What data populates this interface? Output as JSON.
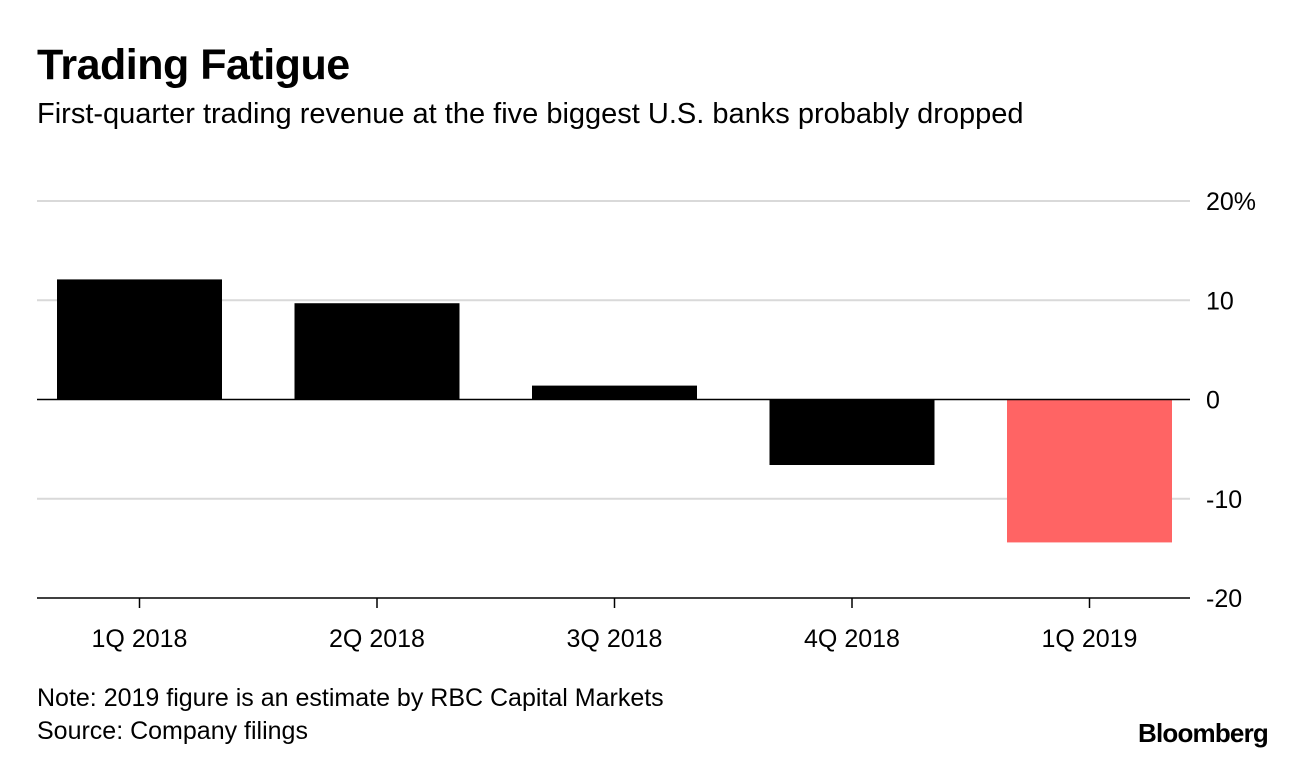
{
  "header": {
    "title": "Trading Fatigue",
    "subtitle": "First-quarter trading revenue at the five biggest U.S. banks probably dropped"
  },
  "chart_data": {
    "type": "bar",
    "title": "Trading Fatigue",
    "subtitle": "First-quarter trading revenue at the five biggest U.S. banks probably dropped",
    "categories": [
      "1Q 2018",
      "2Q 2018",
      "3Q 2018",
      "4Q 2018",
      "1Q 2019"
    ],
    "values": [
      12.1,
      9.7,
      1.4,
      -6.6,
      -14.4
    ],
    "bar_colors": [
      "#000000",
      "#000000",
      "#000000",
      "#000000",
      "#ff6464"
    ],
    "ylim": [
      -20,
      20
    ],
    "yticks": [
      20,
      10,
      0,
      -10,
      -20
    ],
    "ytick_labels": [
      "20%",
      "10",
      "0",
      "-10",
      "-20"
    ],
    "grid": true,
    "grid_color": "#d9d9d9",
    "xlabel": "",
    "ylabel": ""
  },
  "footer": {
    "note": "Note: 2019 figure is an estimate by RBC Capital Markets",
    "source": "Source: Company filings",
    "brand": "Bloomberg"
  }
}
